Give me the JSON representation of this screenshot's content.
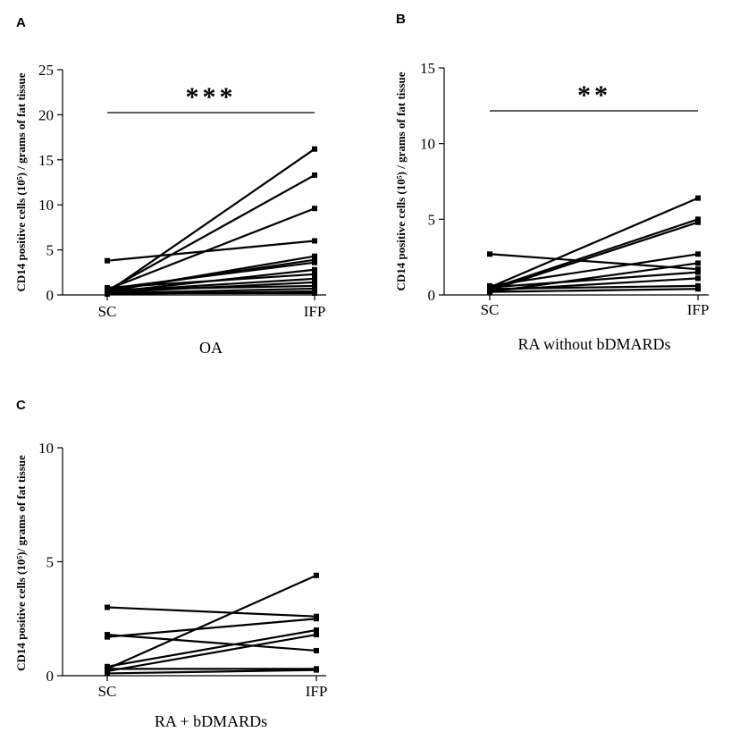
{
  "chart_data": [
    {
      "panel": "A",
      "type": "line",
      "categories": [
        "SC",
        "IFP"
      ],
      "xlabel": "OA",
      "ylabel": "CD14 positive cells (10⁵) / grams of fat tissue",
      "ylim": [
        0,
        25
      ],
      "yticks": [
        "0",
        "5",
        "10",
        "15",
        "20",
        "25"
      ],
      "significance": "***",
      "series": [
        {
          "values": [
            0.3,
            16.2
          ]
        },
        {
          "values": [
            0.5,
            13.3
          ]
        },
        {
          "values": [
            0.6,
            9.6
          ]
        },
        {
          "values": [
            3.8,
            6.0
          ]
        },
        {
          "values": [
            0.4,
            4.3
          ]
        },
        {
          "values": [
            0.5,
            3.9
          ]
        },
        {
          "values": [
            0.7,
            3.6
          ]
        },
        {
          "values": [
            0.3,
            2.8
          ]
        },
        {
          "values": [
            0.8,
            2.3
          ]
        },
        {
          "values": [
            0.4,
            1.8
          ]
        },
        {
          "values": [
            0.3,
            1.4
          ]
        },
        {
          "values": [
            0.6,
            1.0
          ]
        },
        {
          "values": [
            0.2,
            0.7
          ]
        },
        {
          "values": [
            0.1,
            0.4
          ]
        },
        {
          "values": [
            0.2,
            0.2
          ]
        }
      ]
    },
    {
      "panel": "B",
      "type": "line",
      "categories": [
        "SC",
        "IFP"
      ],
      "xlabel": "RA without bDMARDs",
      "ylabel": "CD14 positive cells (10⁵) / grams of fat tissue",
      "ylim": [
        0,
        15
      ],
      "yticks": [
        "0",
        "5",
        "10",
        "15"
      ],
      "significance": "**",
      "series": [
        {
          "values": [
            0.5,
            6.4
          ]
        },
        {
          "values": [
            0.4,
            5.0
          ]
        },
        {
          "values": [
            0.3,
            4.8
          ]
        },
        {
          "values": [
            0.6,
            2.7
          ]
        },
        {
          "values": [
            0.2,
            2.1
          ]
        },
        {
          "values": [
            2.7,
            1.7
          ]
        },
        {
          "values": [
            0.5,
            1.5
          ]
        },
        {
          "values": [
            0.3,
            1.1
          ]
        },
        {
          "values": [
            0.4,
            0.6
          ]
        },
        {
          "values": [
            0.2,
            0.4
          ]
        }
      ]
    },
    {
      "panel": "C",
      "type": "line",
      "categories": [
        "SC",
        "IFP"
      ],
      "xlabel": "RA + bDMARDs",
      "ylabel": "CD14 positive cells (10⁵)/ grams of fat tissue",
      "ylim": [
        0,
        10
      ],
      "yticks": [
        "0",
        "5",
        "10"
      ],
      "significance": "",
      "series": [
        {
          "values": [
            0.3,
            4.4
          ]
        },
        {
          "values": [
            3.0,
            2.6
          ]
        },
        {
          "values": [
            1.7,
            2.5
          ]
        },
        {
          "values": [
            1.8,
            1.1
          ]
        },
        {
          "values": [
            0.4,
            2.0
          ]
        },
        {
          "values": [
            0.2,
            1.8
          ]
        },
        {
          "values": [
            0.3,
            0.3
          ]
        },
        {
          "values": [
            0.1,
            0.25
          ]
        }
      ]
    }
  ]
}
